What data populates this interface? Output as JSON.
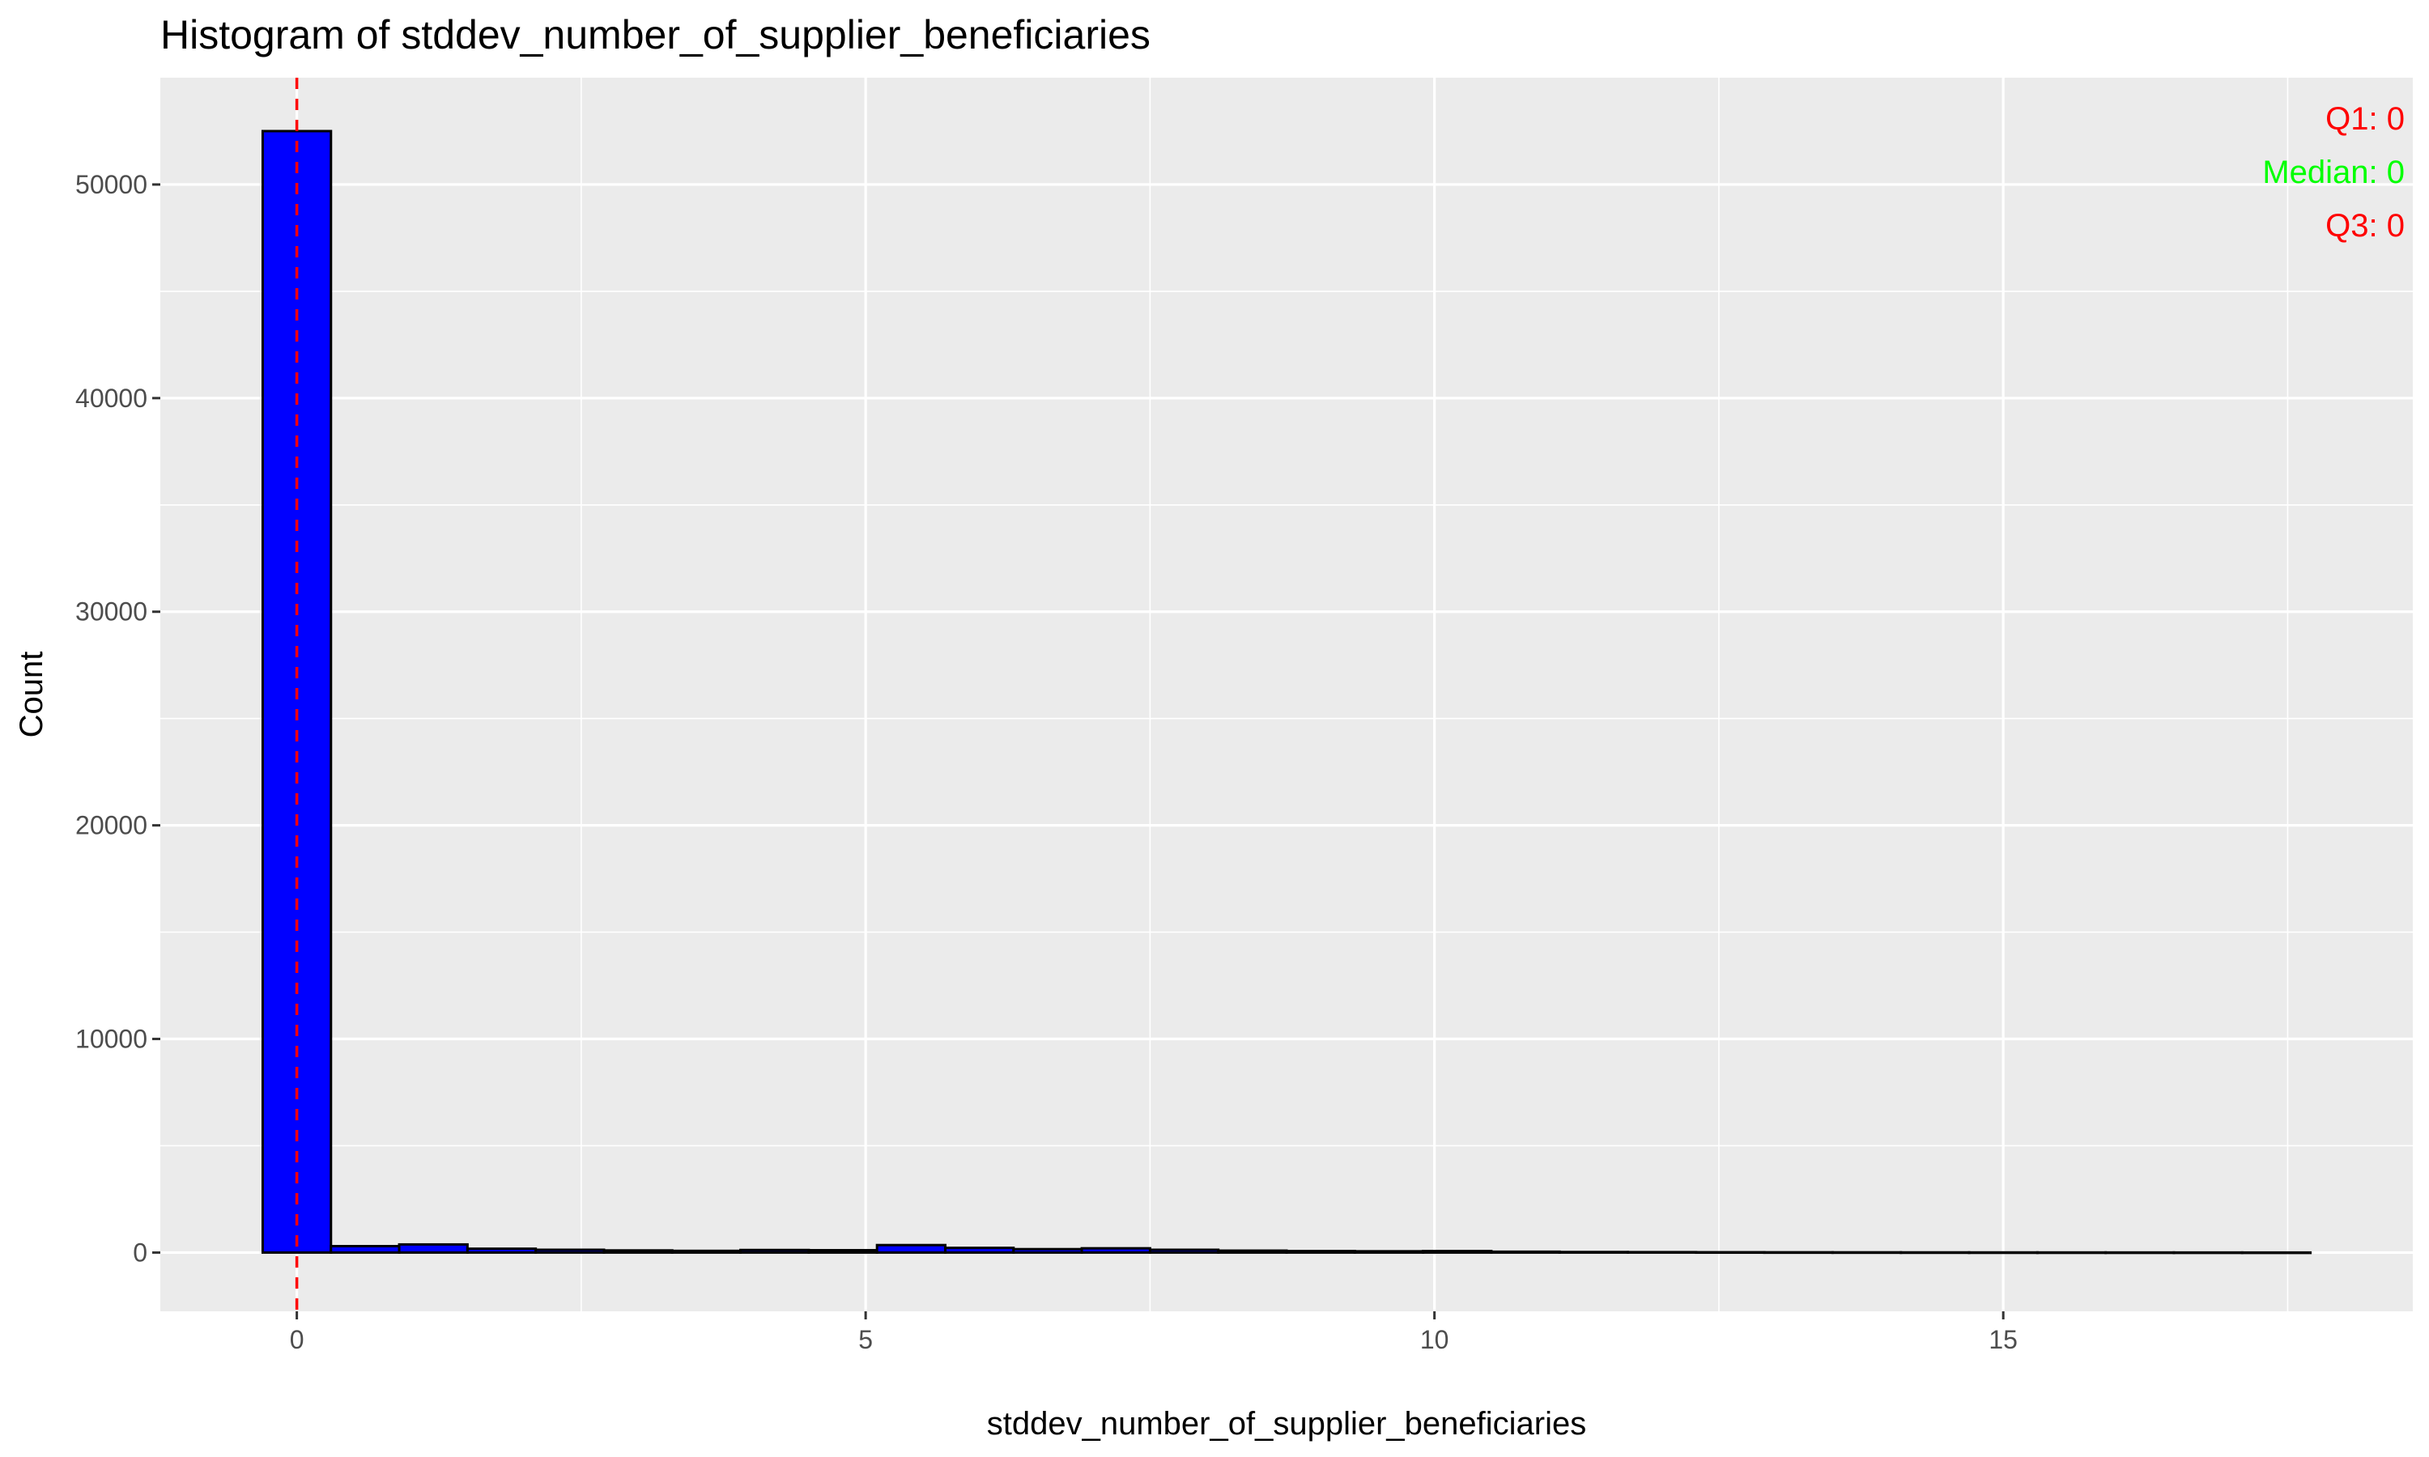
{
  "chart_data": {
    "type": "bar",
    "title": "Histogram of stddev_number_of_supplier_beneficiaries",
    "xlabel": "stddev_number_of_supplier_beneficiaries",
    "ylabel": "Count",
    "xlim": [
      -1.2,
      18.6
    ],
    "ylim": [
      -2750,
      55000
    ],
    "x_ticks": [
      0,
      5,
      10,
      15
    ],
    "x_tick_labels": [
      "0",
      "5",
      "10",
      "15"
    ],
    "y_ticks": [
      0,
      10000,
      20000,
      30000,
      40000,
      50000
    ],
    "y_tick_labels": [
      "0",
      "10000",
      "20000",
      "30000",
      "40000",
      "50000"
    ],
    "grid": true,
    "bin_width": 0.6,
    "bins": [
      {
        "x0": -0.3,
        "x1": 0.3,
        "count": 52500
      },
      {
        "x0": 0.3,
        "x1": 0.9,
        "count": 300
      },
      {
        "x0": 0.9,
        "x1": 1.5,
        "count": 380
      },
      {
        "x0": 1.5,
        "x1": 2.1,
        "count": 180
      },
      {
        "x0": 2.1,
        "x1": 2.7,
        "count": 130
      },
      {
        "x0": 2.7,
        "x1": 3.3,
        "count": 100
      },
      {
        "x0": 3.3,
        "x1": 3.9,
        "count": 80
      },
      {
        "x0": 3.9,
        "x1": 4.5,
        "count": 120
      },
      {
        "x0": 4.5,
        "x1": 5.1,
        "count": 110
      },
      {
        "x0": 5.1,
        "x1": 5.7,
        "count": 350
      },
      {
        "x0": 5.7,
        "x1": 6.3,
        "count": 220
      },
      {
        "x0": 6.3,
        "x1": 6.9,
        "count": 160
      },
      {
        "x0": 6.9,
        "x1": 7.5,
        "count": 200
      },
      {
        "x0": 7.5,
        "x1": 8.1,
        "count": 130
      },
      {
        "x0": 8.1,
        "x1": 8.7,
        "count": 90
      },
      {
        "x0": 8.7,
        "x1": 9.3,
        "count": 70
      },
      {
        "x0": 9.3,
        "x1": 9.9,
        "count": 60
      },
      {
        "x0": 9.9,
        "x1": 10.5,
        "count": 70
      },
      {
        "x0": 10.5,
        "x1": 11.1,
        "count": 40
      },
      {
        "x0": 11.1,
        "x1": 11.7,
        "count": 25
      },
      {
        "x0": 11.7,
        "x1": 12.3,
        "count": 20
      },
      {
        "x0": 12.3,
        "x1": 12.9,
        "count": 15
      },
      {
        "x0": 12.9,
        "x1": 13.5,
        "count": 12
      },
      {
        "x0": 13.5,
        "x1": 14.1,
        "count": 10
      },
      {
        "x0": 14.1,
        "x1": 14.7,
        "count": 8
      },
      {
        "x0": 14.7,
        "x1": 15.3,
        "count": 6
      },
      {
        "x0": 15.3,
        "x1": 15.9,
        "count": 5
      },
      {
        "x0": 15.9,
        "x1": 16.5,
        "count": 4
      },
      {
        "x0": 16.5,
        "x1": 17.1,
        "count": 3
      },
      {
        "x0": 17.1,
        "x1": 17.7,
        "count": 2
      }
    ],
    "bar_fill": "#0000ff",
    "bar_outline": "#000000",
    "reference_line": {
      "x": 0,
      "color": "#ff0000",
      "style": "dashed"
    },
    "annotations": [
      {
        "text": "Q1: 0",
        "color": "#ff0000"
      },
      {
        "text": "Median: 0",
        "color": "#00ff00"
      },
      {
        "text": "Q3: 0",
        "color": "#ff0000"
      }
    ],
    "panel_background": "#ebebeb",
    "grid_color": "#ffffff"
  }
}
